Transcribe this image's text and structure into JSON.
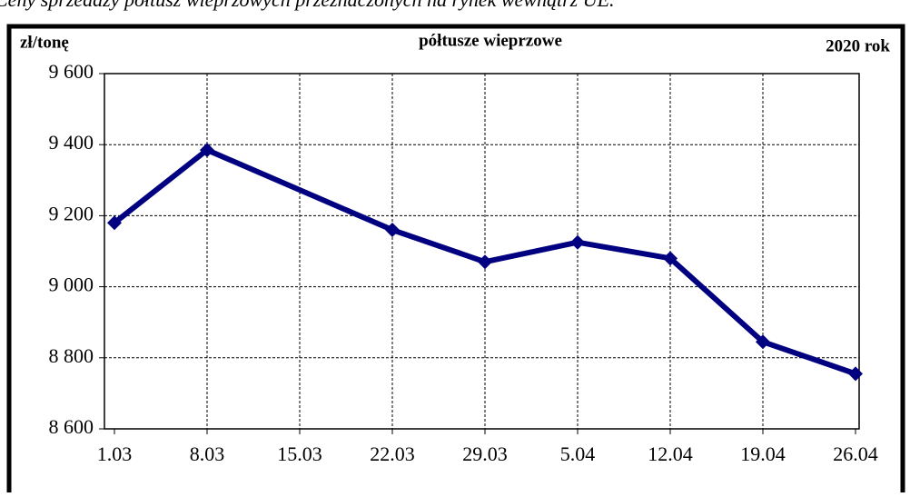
{
  "chart_data": {
    "type": "line",
    "title": "Ceny sprzedaży półtusz wieprzowych przeznaczonych na rynek wewnątrz UE.",
    "subtitle": "półtusze wieprzowe",
    "y_label": "zł/tonę",
    "annotation": "2020 rok",
    "categories": [
      "1.03",
      "8.03",
      "15.03",
      "22.03",
      "29.03",
      "5.04",
      "12.04",
      "19.04",
      "26.04"
    ],
    "series": [
      {
        "name": "półtusze wieprzowe",
        "color": "#000080",
        "values": [
          9180,
          9385,
          null,
          9160,
          9070,
          9125,
          9080,
          8845,
          8755
        ]
      }
    ],
    "connect_gaps": true,
    "ylim": [
      8600,
      9600
    ],
    "yticks": [
      {
        "value": 8600,
        "label": "8 600"
      },
      {
        "value": 8800,
        "label": "8 800"
      },
      {
        "value": 9000,
        "label": "9 000"
      },
      {
        "value": 9200,
        "label": "9 200"
      },
      {
        "value": 9400,
        "label": "9 400"
      },
      {
        "value": 9600,
        "label": "9 600"
      }
    ],
    "grid": true
  }
}
